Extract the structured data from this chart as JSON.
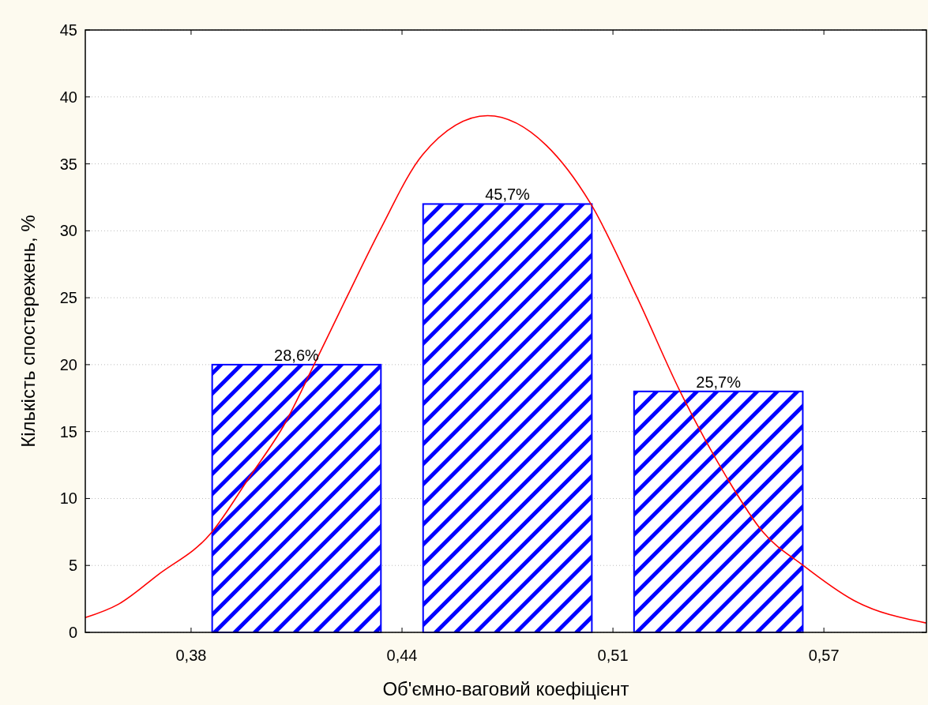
{
  "chart_data": {
    "type": "histogram",
    "xlabel": "Об'ємно-ваговий коефіцієнт",
    "ylabel": "Кількість спостережень, %",
    "bins": [
      0.38,
      0.445,
      0.51,
      0.575
    ],
    "values": [
      20,
      32,
      18
    ],
    "annotations": [
      {
        "text": "28,6%",
        "x": 0.4125,
        "y": 20
      },
      {
        "text": "45,7%",
        "x": 0.4775,
        "y": 32
      },
      {
        "text": "25,7%",
        "x": 0.5425,
        "y": 18
      }
    ],
    "color": "#0000ff",
    "series": [
      {
        "type": "line",
        "color": "#ff0000",
        "x": [
          0.3474,
          0.3576,
          0.3698,
          0.3861,
          0.398,
          0.4089,
          0.4179,
          0.4281,
          0.4381,
          0.4514,
          0.4714,
          0.4894,
          0.5032,
          0.5173,
          0.5307,
          0.545,
          0.5562,
          0.5686,
          0.5841,
          0.6065
        ],
        "values": [
          1.1,
          2.1,
          4.3,
          7.4,
          11.6,
          15.6,
          20,
          25.1,
          30,
          35.7,
          38.6,
          36.4,
          32,
          25.1,
          18,
          11.6,
          7.5,
          5,
          2.4,
          0.7
        ]
      }
    ],
    "xlim": [
      0.3474,
      0.6066
    ],
    "xticks": [
      {
        "value": 0.38,
        "label": "0,38"
      },
      {
        "value": 0.445,
        "label": "0,44"
      },
      {
        "value": 0.51,
        "label": "0,51"
      },
      {
        "value": 0.575,
        "label": "0,57"
      }
    ],
    "ylim": [
      0,
      45
    ],
    "yticks": [
      0,
      5,
      10,
      15,
      20,
      25,
      30,
      35,
      40,
      45
    ],
    "grid": "y"
  }
}
